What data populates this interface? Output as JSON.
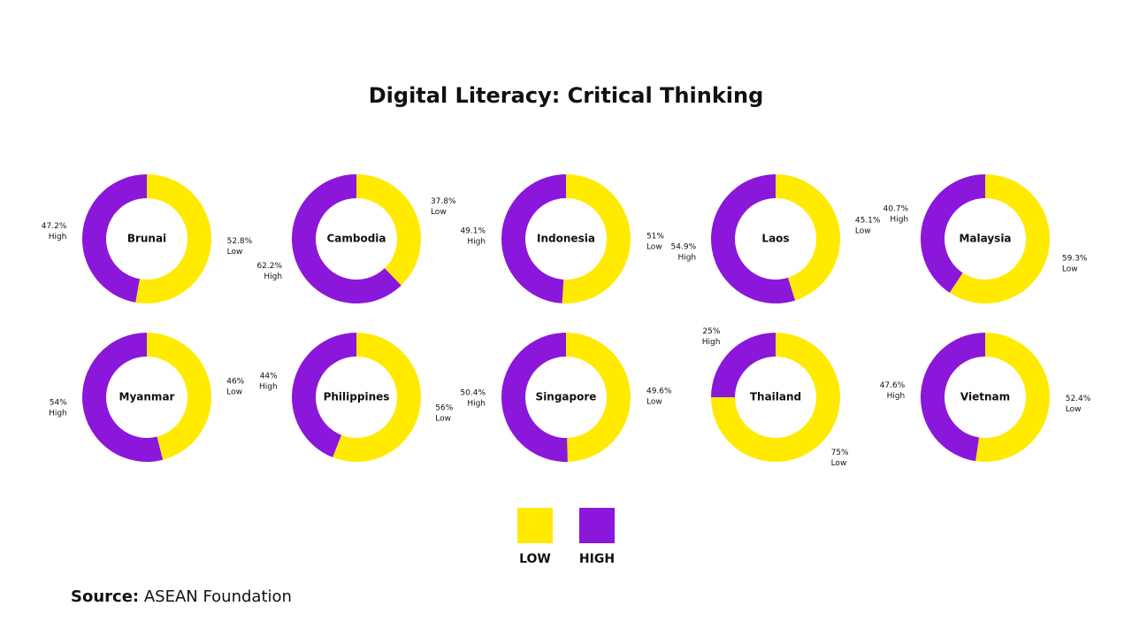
{
  "title": "Digital Literacy: Critical Thinking",
  "source_label": "Source:",
  "source": "ASEAN Foundation",
  "legend": [
    {
      "label": "LOW",
      "color": "#ffea00"
    },
    {
      "label": "HIGH",
      "color": "#8a17d9"
    }
  ],
  "chart_data": [
    {
      "type": "donut",
      "title": "Brunai",
      "categories": [
        "Low",
        "High"
      ],
      "values": [
        52.8,
        47.2
      ],
      "value_labels": [
        "52.8%",
        "47.2%"
      ],
      "colors": [
        "#ffea00",
        "#8a17d9"
      ]
    },
    {
      "type": "donut",
      "title": "Cambodia",
      "categories": [
        "Low",
        "High"
      ],
      "values": [
        37.8,
        62.2
      ],
      "value_labels": [
        "37.8%",
        "62.2%"
      ],
      "colors": [
        "#ffea00",
        "#8a17d9"
      ]
    },
    {
      "type": "donut",
      "title": "Indonesia",
      "categories": [
        "Low",
        "High"
      ],
      "values": [
        51,
        49.1
      ],
      "value_labels": [
        "51%",
        "49.1%"
      ],
      "colors": [
        "#ffea00",
        "#8a17d9"
      ]
    },
    {
      "type": "donut",
      "title": "Laos",
      "categories": [
        "Low",
        "High"
      ],
      "values": [
        45.1,
        54.9
      ],
      "value_labels": [
        "45.1%",
        "54.9%"
      ],
      "colors": [
        "#ffea00",
        "#8a17d9"
      ]
    },
    {
      "type": "donut",
      "title": "Malaysia",
      "categories": [
        "Low",
        "High"
      ],
      "values": [
        59.3,
        40.7
      ],
      "value_labels": [
        "59.3%",
        "40.7%"
      ],
      "colors": [
        "#ffea00",
        "#8a17d9"
      ]
    },
    {
      "type": "donut",
      "title": "Myanmar",
      "categories": [
        "Low",
        "High"
      ],
      "values": [
        46,
        54
      ],
      "value_labels": [
        "46%",
        "54%"
      ],
      "colors": [
        "#ffea00",
        "#8a17d9"
      ]
    },
    {
      "type": "donut",
      "title": "Philippines",
      "categories": [
        "Low",
        "High"
      ],
      "values": [
        56,
        44
      ],
      "value_labels": [
        "56%",
        "44%"
      ],
      "colors": [
        "#ffea00",
        "#8a17d9"
      ]
    },
    {
      "type": "donut",
      "title": "Singapore",
      "categories": [
        "Low",
        "High"
      ],
      "values": [
        49.6,
        50.4
      ],
      "value_labels": [
        "49.6%",
        "50.4%"
      ],
      "colors": [
        "#ffea00",
        "#8a17d9"
      ]
    },
    {
      "type": "donut",
      "title": "Thailand",
      "categories": [
        "Low",
        "High"
      ],
      "values": [
        75,
        25
      ],
      "value_labels": [
        "75%",
        "25%"
      ],
      "colors": [
        "#ffea00",
        "#8a17d9"
      ]
    },
    {
      "type": "donut",
      "title": "Vietnam",
      "categories": [
        "Low",
        "High"
      ],
      "values": [
        52.4,
        47.6
      ],
      "value_labels": [
        "52.4%",
        "47.6%"
      ],
      "colors": [
        "#ffea00",
        "#8a17d9"
      ]
    }
  ]
}
